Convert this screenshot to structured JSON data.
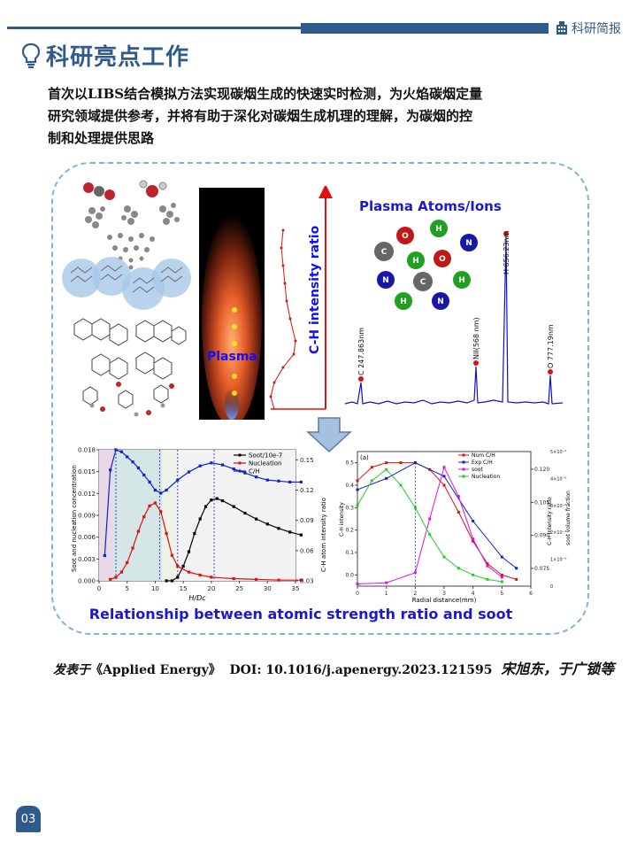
{
  "header": {
    "brand": "科研简报"
  },
  "section": {
    "title": "科研亮点工作"
  },
  "summary": {
    "line1": "首次以LIBS结合模拟方法实现碳烟生成的快速实时检测，为火焰碳烟定量",
    "line2": "研究领域提供参考，并将有助于深化对碳烟生成机理的理解，为碳烟的控",
    "line3": "制和处理提供思路"
  },
  "figure": {
    "plasma_label": "Plasma",
    "ch_axis_label": "C-H intensity ratio",
    "spectrum": {
      "title": "Plasma Atoms/Ions",
      "peaks": [
        "C 247.863nm",
        "NII(568 nm)",
        "H 656.23nm",
        "O 777.19nm"
      ],
      "atoms": [
        "O",
        "H",
        "C",
        "H",
        "O",
        "N",
        "N",
        "C",
        "H",
        "H",
        "N"
      ]
    },
    "caption": "Relationship between atomic strength ratio and soot"
  },
  "chart_data": [
    {
      "type": "line",
      "xlabel": "H/Dc",
      "ylabel": "Soot and nucleation concentration",
      "y2label": "C-H atom intensity ratio",
      "xlim": [
        0,
        35
      ],
      "ylim": [
        0,
        0.018
      ],
      "y2lim": [
        0.03,
        0.16
      ],
      "x_ticks": [
        "0",
        "5",
        "10",
        "15",
        "20",
        "25",
        "30",
        "35"
      ],
      "y_ticks": [
        "0.000",
        "0.003",
        "0.006",
        "0.009",
        "0.012",
        "0.015",
        "0.018"
      ],
      "y2_ticks": [
        "0.03",
        "0.06",
        "0.09",
        "0.12",
        "0.15"
      ],
      "series": [
        {
          "name": "Soot/10e-7",
          "color": "#000000",
          "x": [
            12,
            13,
            14,
            15,
            16,
            17,
            18,
            19,
            20,
            21,
            22,
            24,
            26,
            28,
            30,
            32,
            34,
            36
          ],
          "y": [
            0,
            0,
            0.0005,
            0.002,
            0.004,
            0.0065,
            0.0085,
            0.0102,
            0.0111,
            0.0113,
            0.011,
            0.0102,
            0.0093,
            0.0085,
            0.0078,
            0.0072,
            0.0067,
            0.0063
          ]
        },
        {
          "name": "Nucleation",
          "color": "#e01010",
          "x": [
            2,
            3,
            4,
            5,
            6,
            7,
            8,
            9,
            10,
            11,
            12,
            13,
            14,
            16,
            18,
            20,
            24,
            28,
            32,
            36
          ],
          "y": [
            0.0002,
            0.0005,
            0.0012,
            0.0025,
            0.0045,
            0.0068,
            0.0088,
            0.0103,
            0.0107,
            0.0095,
            0.0065,
            0.0035,
            0.002,
            0.0012,
            0.0008,
            0.0005,
            0.0003,
            0.0002,
            0.0001,
            0.0001
          ]
        },
        {
          "name": "C/H",
          "color": "#1020d0",
          "x": [
            1,
            2,
            3,
            4,
            5,
            6,
            7,
            8,
            9,
            10,
            11,
            12,
            14,
            16,
            18,
            20,
            22,
            24,
            26,
            28,
            30,
            32,
            34,
            36
          ],
          "y": [
            0.055,
            0.14,
            0.16,
            0.158,
            0.153,
            0.148,
            0.142,
            0.135,
            0.128,
            0.12,
            0.117,
            0.12,
            0.13,
            0.138,
            0.144,
            0.147,
            0.145,
            0.141,
            0.137,
            0.133,
            0.13,
            0.129,
            0.128,
            0.128
          ]
        }
      ]
    },
    {
      "type": "line",
      "panel_label": "(a)",
      "xlabel": "Radial distance(mm)",
      "ylabel": "C-H intensity",
      "y2label": "C-H intensity ratio",
      "y3label": "soot volume fraction",
      "xlim": [
        0,
        6
      ],
      "ylim": [
        -0.05,
        0.55
      ],
      "x_ticks": [
        "0",
        "1",
        "2",
        "3",
        "4",
        "5",
        "6"
      ],
      "y_ticks": [
        "0.0",
        "0.1",
        "0.2",
        "0.3",
        "0.4",
        "0.5"
      ],
      "y2_ticks": [
        "0.075",
        "0.090",
        "0.105",
        "0.120"
      ],
      "y3_ticks": [
        "0",
        "1×10⁻⁶",
        "2×10⁻⁶",
        "3×10⁻⁶",
        "4×10⁻⁶",
        "5×10⁻⁶"
      ],
      "series": [
        {
          "name": "Num  C/H",
          "color": "#e01010",
          "x": [
            0,
            0.5,
            1,
            1.5,
            2,
            2.5,
            3,
            3.5,
            4,
            4.5,
            5,
            5.5
          ],
          "y": [
            0.42,
            0.48,
            0.5,
            0.5,
            0.5,
            0.47,
            0.4,
            0.28,
            0.15,
            0.05,
            0.0,
            -0.02
          ]
        },
        {
          "name": "Exp  C/H",
          "color": "#1020d0",
          "x": [
            0,
            1,
            2,
            3,
            4,
            5,
            5.5
          ],
          "y": [
            0.38,
            0.43,
            0.5,
            0.44,
            0.24,
            0.08,
            0.03
          ]
        },
        {
          "name": "soot",
          "color": "#e010e0",
          "x": [
            0,
            1,
            2,
            2.5,
            3,
            3.5,
            4,
            4.5,
            5
          ],
          "y": [
            -0.04,
            -0.035,
            0.01,
            0.25,
            0.48,
            0.35,
            0.16,
            0.04,
            -0.01
          ]
        },
        {
          "name": "Nucleation",
          "color": "#20d020",
          "x": [
            0,
            0.5,
            1,
            1.5,
            2,
            2.5,
            3,
            3.5,
            4,
            4.5,
            5
          ],
          "y": [
            0.31,
            0.42,
            0.47,
            0.4,
            0.3,
            0.18,
            0.08,
            0.03,
            0.0,
            -0.02,
            -0.03
          ]
        }
      ]
    }
  ],
  "publication": {
    "prefix": "发表于",
    "journal": "《Applied Energy》",
    "doi": "DOI: 10.1016/j.apenergy.2023.121595",
    "authors": "宋旭东，于广锁等"
  },
  "page_number": "03"
}
